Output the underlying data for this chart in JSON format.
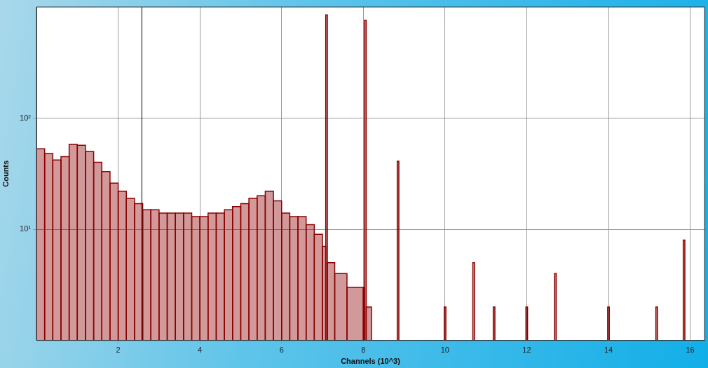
{
  "chart_data": {
    "type": "histogram",
    "xlabel": "Channels (10^3)",
    "ylabel": "Counts",
    "bins": [
      0,
      0.2,
      0.4,
      0.6,
      0.8,
      1.0,
      1.2,
      1.4,
      1.6,
      1.8,
      2.0,
      2.2,
      2.4,
      2.6,
      2.8,
      3.0,
      3.2,
      3.4,
      3.6,
      3.8,
      4.0,
      4.2,
      4.4,
      4.6,
      4.8,
      5.0,
      5.2,
      5.4,
      5.6,
      5.8,
      6.0,
      6.2,
      6.4,
      6.6,
      6.8,
      7.0,
      7.08,
      7.12,
      7.3,
      7.6,
      8.0,
      8.03,
      8.07,
      8.2,
      8.83,
      8.87,
      9.98,
      10.02,
      10.68,
      10.72,
      11.18,
      11.22,
      11.98,
      12.02,
      12.68,
      12.72,
      13.98,
      14.02,
      15.16,
      15.2,
      15.83,
      15.87
    ],
    "values": [
      53,
      48,
      42,
      45,
      58,
      57,
      50,
      40,
      33,
      26,
      22,
      19,
      17,
      15,
      15,
      14,
      14,
      14,
      14,
      13,
      13,
      14,
      14,
      15,
      16,
      17,
      19,
      20,
      22,
      18,
      14,
      13,
      13,
      11,
      9,
      7,
      850,
      5,
      4,
      3,
      3,
      760,
      2,
      null,
      41,
      null,
      2,
      null,
      5,
      null,
      2,
      null,
      2,
      null,
      4,
      null,
      2,
      null,
      2,
      null,
      8
    ],
    "color": "#8b0000",
    "log": "y",
    "xlim": [
      0,
      16.35
    ],
    "ylim": [
      1,
      1000
    ],
    "xticks": [
      2,
      4,
      6,
      8,
      10,
      12,
      14,
      16
    ],
    "yticks": [
      {
        "value": 10,
        "label": "10¹"
      },
      {
        "value": 100,
        "label": "10²"
      }
    ],
    "grid": true,
    "ref_lines": [
      {
        "axis": "x",
        "value": 2.58,
        "label": null,
        "color": "#000000"
      }
    ]
  }
}
